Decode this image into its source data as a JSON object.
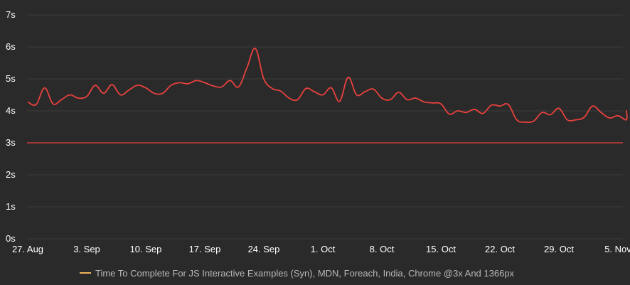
{
  "chart_data": {
    "type": "line",
    "x_tick_labels": [
      "27. Aug",
      "3. Sep",
      "10. Sep",
      "17. Sep",
      "24. Sep",
      "1. Oct",
      "8. Oct",
      "15. Oct",
      "22. Oct",
      "29. Oct",
      "5. Nov"
    ],
    "y_tick_labels": [
      "0s",
      "1s",
      "2s",
      "3s",
      "4s",
      "5s",
      "6s",
      "7s"
    ],
    "ylim": [
      0,
      7
    ],
    "y_unit": "s",
    "x_range": [
      "27. Aug",
      "6. Nov"
    ],
    "grid": true,
    "legend_position": "bottom-center",
    "threshold": {
      "value": 3,
      "color": "#e8413d"
    },
    "series": [
      {
        "name": "Time To Complete For JS Interactive Examples (Syn), MDN, Foreach, India, Chrome @3x And 1366px",
        "color": "#e8413d",
        "legend_color": "#f0b45a",
        "points": [
          [
            "27. Aug",
            4.28
          ],
          [
            "28. Aug",
            4.2
          ],
          [
            "29. Aug",
            4.72
          ],
          [
            "30. Aug",
            4.22
          ],
          [
            "31. Aug",
            4.35
          ],
          [
            "1. Sep",
            4.5
          ],
          [
            "2. Sep",
            4.4
          ],
          [
            "3. Sep",
            4.45
          ],
          [
            "4. Sep",
            4.8
          ],
          [
            "5. Sep",
            4.55
          ],
          [
            "6. Sep",
            4.82
          ],
          [
            "7. Sep",
            4.5
          ],
          [
            "8. Sep",
            4.65
          ],
          [
            "9. Sep",
            4.8
          ],
          [
            "10. Sep",
            4.72
          ],
          [
            "11. Sep",
            4.55
          ],
          [
            "12. Sep",
            4.55
          ],
          [
            "13. Sep",
            4.8
          ],
          [
            "14. Sep",
            4.88
          ],
          [
            "15. Sep",
            4.85
          ],
          [
            "16. Sep",
            4.95
          ],
          [
            "17. Sep",
            4.88
          ],
          [
            "18. Sep",
            4.78
          ],
          [
            "19. Sep",
            4.75
          ],
          [
            "20. Sep",
            4.95
          ],
          [
            "21. Sep",
            4.75
          ],
          [
            "22. Sep",
            5.35
          ],
          [
            "23. Sep",
            5.95
          ],
          [
            "24. Sep",
            5.0
          ],
          [
            "25. Sep",
            4.7
          ],
          [
            "26. Sep",
            4.62
          ],
          [
            "27. Sep",
            4.4
          ],
          [
            "28. Sep",
            4.35
          ],
          [
            "29. Sep",
            4.7
          ],
          [
            "30. Sep",
            4.6
          ],
          [
            "1. Oct",
            4.5
          ],
          [
            "2. Oct",
            4.72
          ],
          [
            "3. Oct",
            4.3
          ],
          [
            "4. Oct",
            5.05
          ],
          [
            "5. Oct",
            4.5
          ],
          [
            "6. Oct",
            4.6
          ],
          [
            "7. Oct",
            4.68
          ],
          [
            "8. Oct",
            4.4
          ],
          [
            "9. Oct",
            4.35
          ],
          [
            "10. Oct",
            4.58
          ],
          [
            "11. Oct",
            4.35
          ],
          [
            "12. Oct",
            4.4
          ],
          [
            "13. Oct",
            4.28
          ],
          [
            "14. Oct",
            4.25
          ],
          [
            "15. Oct",
            4.22
          ],
          [
            "16. Oct",
            3.9
          ],
          [
            "17. Oct",
            4.0
          ],
          [
            "18. Oct",
            3.95
          ],
          [
            "19. Oct",
            4.05
          ],
          [
            "20. Oct",
            3.92
          ],
          [
            "21. Oct",
            4.18
          ],
          [
            "22. Oct",
            4.15
          ],
          [
            "23. Oct",
            4.2
          ],
          [
            "24. Oct",
            3.72
          ],
          [
            "25. Oct",
            3.65
          ],
          [
            "26. Oct",
            3.68
          ],
          [
            "27. Oct",
            3.95
          ],
          [
            "28. Oct",
            3.88
          ],
          [
            "29. Oct",
            4.08
          ],
          [
            "30. Oct",
            3.72
          ],
          [
            "31. Oct",
            3.72
          ],
          [
            "1. Nov",
            3.8
          ],
          [
            "2. Nov",
            4.15
          ],
          [
            "3. Nov",
            3.95
          ],
          [
            "4. Nov",
            3.78
          ],
          [
            "5. Nov",
            3.85
          ],
          [
            "6. Nov",
            3.72
          ],
          [
            "6. Nov",
            4.02
          ]
        ]
      }
    ]
  }
}
